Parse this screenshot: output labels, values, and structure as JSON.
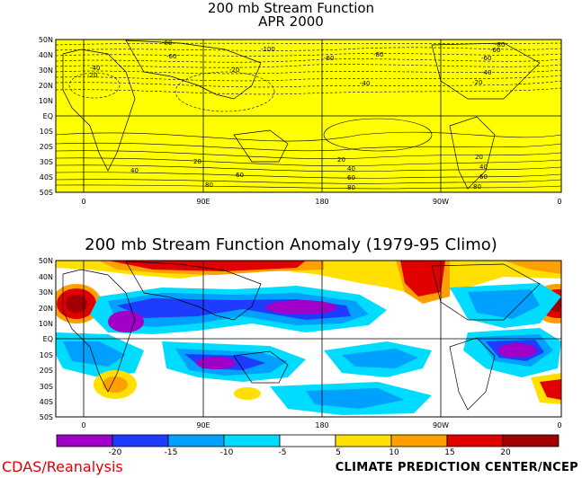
{
  "map1": {
    "title": "200 mb Stream Function",
    "subtitle": "APR 2000",
    "lat_labels": [
      "50N",
      "40N",
      "30N",
      "20N",
      "10N",
      "EQ",
      "10S",
      "20S",
      "30S",
      "40S",
      "50S"
    ],
    "lon_labels": [
      "0",
      "90E",
      "180",
      "90W",
      "0"
    ],
    "contour_labels": [
      "-80",
      "-100",
      "-60",
      "-80",
      "-40",
      "-60",
      "-20",
      "-40",
      "-20",
      "-60",
      "-80",
      "-60",
      "-40",
      "-20",
      "20",
      "40",
      "60",
      "80",
      "20",
      "40",
      "60",
      "80",
      "20",
      "40",
      "60",
      "80"
    ],
    "fill_color": "#ffff00"
  },
  "map2": {
    "title": "200 mb Stream Function Anomaly (1979-95 Climo)",
    "lat_labels": [
      "50N",
      "40N",
      "30N",
      "20N",
      "10N",
      "EQ",
      "10S",
      "20S",
      "30S",
      "40S",
      "50S"
    ],
    "lon_labels": [
      "0",
      "90E",
      "180",
      "90W",
      "0"
    ]
  },
  "colorbar": {
    "labels": [
      "-20",
      "-15",
      "-10",
      "-5",
      "5",
      "10",
      "15",
      "20"
    ],
    "colors": [
      "#a000c8",
      "#1e3cff",
      "#00a0ff",
      "#00dcff",
      "#ffffff",
      "#ffe000",
      "#ffa000",
      "#e00000",
      "#a00000"
    ]
  },
  "footer": {
    "left": "CDAS/Reanalysis",
    "right": "CLIMATE PREDICTION CENTER/NCEP"
  }
}
